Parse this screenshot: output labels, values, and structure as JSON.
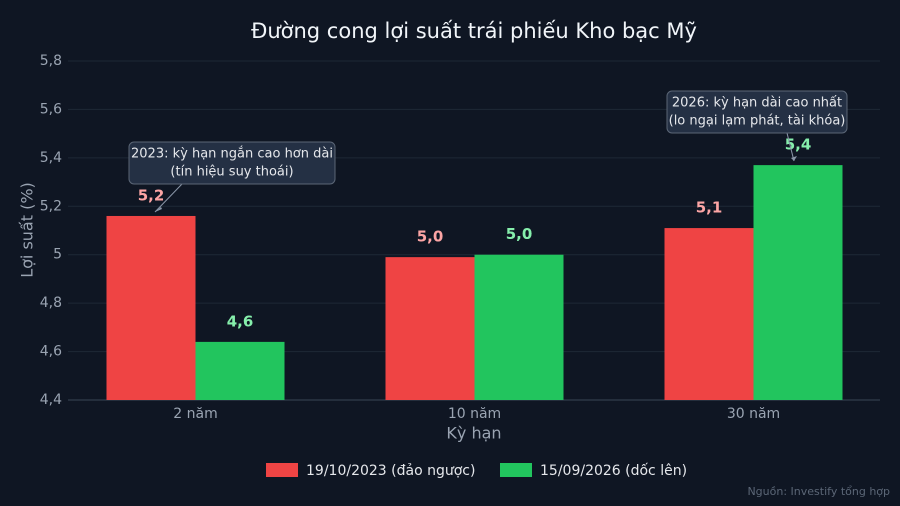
{
  "chart_data": {
    "type": "bar",
    "title": "Đường cong lợi suất trái phiếu Kho bạc Mỹ",
    "x_label": "Kỳ hạn",
    "y_label": "Lợi suất (%)",
    "categories": [
      "2 năm",
      "10 năm",
      "30 năm"
    ],
    "series": [
      {
        "name": "19/10/2023 (đảo ngược)",
        "color": "#ef4444",
        "values": [
          5.16,
          4.99,
          5.11
        ],
        "value_labels": [
          "5,2",
          "5,0",
          "5,1"
        ]
      },
      {
        "name": "15/09/2026 (dốc lên)",
        "color": "#22c55e",
        "values": [
          4.64,
          5.0,
          5.37
        ],
        "value_labels": [
          "4,6",
          "5,0",
          "5,4"
        ]
      }
    ],
    "ylim": [
      4.4,
      5.8
    ],
    "yticks": [
      {
        "value": 4.4,
        "label": "4,4"
      },
      {
        "value": 4.6,
        "label": "4,6"
      },
      {
        "value": 4.8,
        "label": "4,8"
      },
      5,
      {
        "value": 5.2,
        "label": "5,2"
      },
      {
        "value": 5.4,
        "label": "5,4"
      },
      {
        "value": 5.6,
        "label": "5,6"
      },
      {
        "value": 5.8,
        "label": "5,8"
      }
    ],
    "grid": true,
    "legend": "bottom",
    "annotations": [
      {
        "lines": [
          "2023: kỳ hạn ngắn cao hơn dài",
          "(tín hiệu suy thoái)"
        ]
      },
      {
        "lines": [
          "2026: kỳ hạn dài cao nhất",
          "(lo ngại lạm phát, tài khóa)"
        ]
      }
    ],
    "source": "Nguồn: Investify tổng hợp"
  }
}
